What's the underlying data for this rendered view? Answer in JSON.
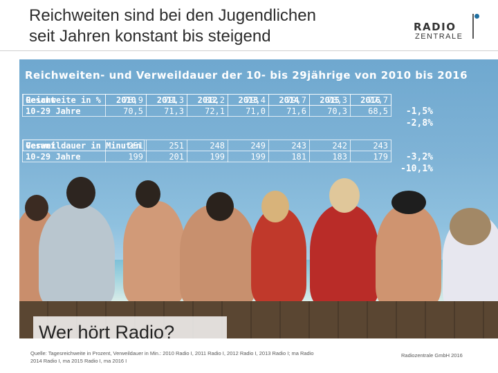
{
  "header": {
    "title_line1": "Reichweiten sind bei den Jugendlichen",
    "title_line2": "seit Jahren konstant bis steigend",
    "logo_line1": "RADIO",
    "logo_line2": "ZENTRALE"
  },
  "table": {
    "title": "Reichweiten- und Verweildauer der 10- bis 29jährige von 2010 bis 2016",
    "years": [
      "2010",
      "2011",
      "2012",
      "2013",
      "2014",
      "2015",
      "2016"
    ],
    "reach": {
      "header": "Reichweite in %",
      "rows": [
        {
          "label": "Gesamt",
          "values": [
            "78,9",
            "79,3",
            "80,2",
            "79,4",
            "79,7",
            "78,3",
            "77,7"
          ],
          "change": "-1,5%"
        },
        {
          "label": "10-29 Jahre",
          "values": [
            "70,5",
            "71,3",
            "72,1",
            "71,0",
            "71,6",
            "70,3",
            "68,5"
          ],
          "change": "-2,8%"
        }
      ]
    },
    "duration": {
      "header": "Verweildauer in Minuten",
      "rows": [
        {
          "label": "Gesamt",
          "values": [
            "251",
            "251",
            "248",
            "249",
            "243",
            "242",
            "243"
          ],
          "change": "-3,2%"
        },
        {
          "label": "10-29 Jahre",
          "values": [
            "199",
            "201",
            "199",
            "199",
            "181",
            "183",
            "179"
          ],
          "change": "-10,1%"
        }
      ]
    }
  },
  "caption": "Wer hört Radio?",
  "footer": {
    "source": "Quelle: Tagesreichweite in Prozent, Verweildauer in Min.: 2010 Radio I, 2011 Radio I, 2012 Radio I, 2013 Radio I; ma Radio 2014 Radio I, ma 2015 Radio I, ma 2016 I",
    "copyright": "Radiozentrale GmbH 2016"
  }
}
